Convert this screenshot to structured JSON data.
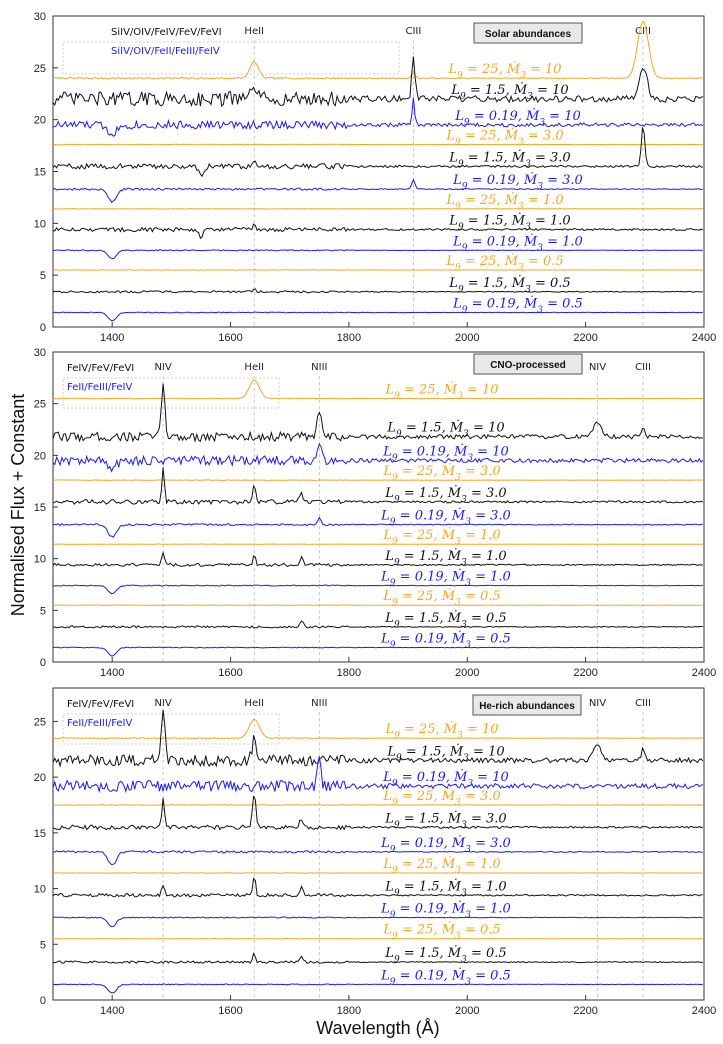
{
  "chart_data": [
    {
      "type": "line",
      "title": "Solar abundances",
      "xlabel": "Wavelength (Å)",
      "ylabel": "Normalised Flux + Constant",
      "xlim": [
        1300,
        2400
      ],
      "ylim": [
        0,
        30
      ],
      "xticks": [
        "1400",
        "1600",
        "1800",
        "2000",
        "2200",
        "2400"
      ],
      "yticks": [
        "0",
        "5",
        "10",
        "15",
        "20",
        "25",
        "30"
      ],
      "legend": {
        "line1": "SiIV/OIV/FeIV/FeV/FeVI",
        "line2": "SiIV/OIV/FeII/FeIII/FeIV"
      },
      "line_ids": [
        {
          "label": "HeII",
          "x": 1640
        },
        {
          "label": "CIII",
          "x": 1909
        },
        {
          "label": "CIII",
          "x": 2297
        }
      ],
      "series": [
        {
          "name": "L9 = 25, Ṁ3 = 10",
          "L9": "25",
          "Mdot3": "10",
          "offset": 24.0,
          "color": "orange",
          "noise": 0.08,
          "features": [
            [
              1640,
              1.6,
              10
            ],
            [
              1909,
              0.5,
              4
            ],
            [
              2297,
              5.5,
              13
            ]
          ]
        },
        {
          "name": "L9 = 1.5, Ṁ3 = 10",
          "L9": "1.5",
          "Mdot3": "10",
          "offset": 22.0,
          "color": "black",
          "noise": 0.7,
          "features": [
            [
              1640,
              1.3,
              6
            ],
            [
              1909,
              4.0,
              4
            ],
            [
              2297,
              3.0,
              10
            ]
          ]
        },
        {
          "name": "L9 = 0.19, Ṁ3 = 10",
          "L9": "0.19",
          "Mdot3": "10",
          "offset": 19.5,
          "color": "blue",
          "noise": 0.4,
          "features": [
            [
              1909,
              2.5,
              3
            ],
            [
              1400,
              -0.8,
              12
            ]
          ]
        },
        {
          "name": "L9 = 25, Ṁ3 = 3.0",
          "L9": "25",
          "Mdot3": "3.0",
          "offset": 17.6,
          "color": "orange",
          "noise": 0.03,
          "features": []
        },
        {
          "name": "L9 = 1.5, Ṁ3 = 3.0",
          "L9": "1.5",
          "Mdot3": "3.0",
          "offset": 15.5,
          "color": "black",
          "noise": 0.25,
          "features": [
            [
              1640,
              0.7,
              4
            ],
            [
              1550,
              -0.8,
              6
            ],
            [
              2297,
              4.0,
              4
            ]
          ]
        },
        {
          "name": "L9 = 0.19, Ṁ3 = 3.0",
          "L9": "0.19",
          "Mdot3": "3.0",
          "offset": 13.3,
          "color": "blue",
          "noise": 0.1,
          "features": [
            [
              1400,
              -1.2,
              10
            ],
            [
              1909,
              0.9,
              4
            ]
          ]
        },
        {
          "name": "L9 = 25, Ṁ3 = 1.0",
          "L9": "25",
          "Mdot3": "1.0",
          "offset": 11.4,
          "color": "orange",
          "noise": 0.02,
          "features": []
        },
        {
          "name": "L9 = 1.5, Ṁ3 = 1.0",
          "L9": "1.5",
          "Mdot3": "1.0",
          "offset": 9.4,
          "color": "black",
          "noise": 0.2,
          "features": [
            [
              1550,
              -0.7,
              5
            ],
            [
              1640,
              0.5,
              3
            ]
          ]
        },
        {
          "name": "L9 = 0.19, Ṁ3 = 1.0",
          "L9": "0.19",
          "Mdot3": "1.0",
          "offset": 7.4,
          "color": "blue",
          "noise": 0.05,
          "features": [
            [
              1400,
              -0.8,
              10
            ]
          ]
        },
        {
          "name": "L9 = 25, Ṁ3 = 0.5",
          "L9": "25",
          "Mdot3": "0.5",
          "offset": 5.5,
          "color": "orange",
          "noise": 0.02,
          "features": []
        },
        {
          "name": "L9 = 1.5, Ṁ3 = 0.5",
          "L9": "1.5",
          "Mdot3": "0.5",
          "offset": 3.4,
          "color": "black",
          "noise": 0.1,
          "features": [
            [
              1640,
              0.3,
              3
            ]
          ]
        },
        {
          "name": "L9 = 0.19, Ṁ3 = 0.5",
          "L9": "0.19",
          "Mdot3": "0.5",
          "offset": 1.4,
          "color": "blue",
          "noise": 0.04,
          "features": [
            [
              1400,
              -0.8,
              10
            ]
          ]
        }
      ]
    },
    {
      "type": "line",
      "title": "CNO-processed",
      "xlabel": "Wavelength (Å)",
      "ylabel": "Normalised Flux + Constant",
      "xlim": [
        1300,
        2400
      ],
      "ylim": [
        0,
        30
      ],
      "xticks": [
        "1400",
        "1600",
        "1800",
        "2000",
        "2200",
        "2400"
      ],
      "yticks": [
        "0",
        "5",
        "10",
        "15",
        "20",
        "25",
        "30"
      ],
      "legend": {
        "line1": "FeIV/FeV/FeVI",
        "line2": "FeII/FeIII/FeIV"
      },
      "line_ids": [
        {
          "label": "NIV",
          "x": 1486
        },
        {
          "label": "HeII",
          "x": 1640
        },
        {
          "label": "NIII",
          "x": 1750
        },
        {
          "label": "NIV",
          "x": 2220
        },
        {
          "label": "CIII",
          "x": 2297
        }
      ],
      "series": [
        {
          "name": "L9 = 25, Ṁ3 = 10",
          "L9": "25",
          "Mdot3": "10",
          "offset": 25.5,
          "color": "orange",
          "noise": 0.04,
          "features": [
            [
              1640,
              1.8,
              12
            ]
          ]
        },
        {
          "name": "L9 = 1.5, Ṁ3 = 10",
          "L9": "1.5",
          "Mdot3": "10",
          "offset": 21.8,
          "color": "black",
          "noise": 0.45,
          "features": [
            [
              1486,
              5.5,
              4
            ],
            [
              1750,
              2.2,
              5
            ],
            [
              2220,
              1.3,
              10
            ],
            [
              2297,
              1.0,
              4
            ]
          ]
        },
        {
          "name": "L9 = 0.19, Ṁ3 = 10",
          "L9": "0.19",
          "Mdot3": "10",
          "offset": 19.5,
          "color": "blue",
          "noise": 0.45,
          "features": [
            [
              1750,
              1.4,
              5
            ],
            [
              1400,
              -0.8,
              10
            ]
          ]
        },
        {
          "name": "L9 = 25, Ṁ3 = 3.0",
          "L9": "25",
          "Mdot3": "3.0",
          "offset": 17.6,
          "color": "orange",
          "noise": 0.03,
          "features": []
        },
        {
          "name": "L9 = 1.5, Ṁ3 = 3.0",
          "L9": "1.5",
          "Mdot3": "3.0",
          "offset": 15.5,
          "color": "black",
          "noise": 0.22,
          "features": [
            [
              1486,
              3.5,
              3
            ],
            [
              1640,
              1.5,
              4
            ],
            [
              1720,
              0.8,
              4
            ]
          ]
        },
        {
          "name": "L9 = 0.19, Ṁ3 = 3.0",
          "L9": "0.19",
          "Mdot3": "3.0",
          "offset": 13.3,
          "color": "blue",
          "noise": 0.1,
          "features": [
            [
              1400,
              -1.2,
              10
            ],
            [
              1750,
              0.6,
              4
            ]
          ]
        },
        {
          "name": "L9 = 25, Ṁ3 = 1.0",
          "L9": "25",
          "Mdot3": "1.0",
          "offset": 11.4,
          "color": "orange",
          "noise": 0.02,
          "features": []
        },
        {
          "name": "L9 = 1.5, Ṁ3 = 1.0",
          "L9": "1.5",
          "Mdot3": "1.0",
          "offset": 9.4,
          "color": "black",
          "noise": 0.15,
          "features": [
            [
              1486,
              1.3,
              3
            ],
            [
              1640,
              1.0,
              3
            ],
            [
              1720,
              0.8,
              4
            ]
          ]
        },
        {
          "name": "L9 = 0.19, Ṁ3 = 1.0",
          "L9": "0.19",
          "Mdot3": "1.0",
          "offset": 7.4,
          "color": "blue",
          "noise": 0.05,
          "features": [
            [
              1400,
              -0.8,
              10
            ]
          ]
        },
        {
          "name": "L9 = 25, Ṁ3 = 0.5",
          "L9": "25",
          "Mdot3": "0.5",
          "offset": 5.5,
          "color": "orange",
          "noise": 0.02,
          "features": []
        },
        {
          "name": "L9 = 1.5, Ṁ3 = 0.5",
          "L9": "1.5",
          "Mdot3": "0.5",
          "offset": 3.4,
          "color": "black",
          "noise": 0.1,
          "features": [
            [
              1720,
              0.6,
              4
            ]
          ]
        },
        {
          "name": "L9 = 0.19, Ṁ3 = 0.5",
          "L9": "0.19",
          "Mdot3": "0.5",
          "offset": 1.4,
          "color": "blue",
          "noise": 0.04,
          "features": [
            [
              1400,
              -0.8,
              10
            ]
          ]
        }
      ]
    },
    {
      "type": "line",
      "title": "He-rich abundances",
      "xlabel": "Wavelength (Å)",
      "ylabel": "Normalised Flux + Constant",
      "xlim": [
        1300,
        2400
      ],
      "ylim": [
        0,
        28
      ],
      "xticks": [
        "1400",
        "1600",
        "1800",
        "2000",
        "2200",
        "2400"
      ],
      "yticks": [
        "0",
        "5",
        "10",
        "15",
        "20",
        "25"
      ],
      "legend": {
        "line1": "FeIV/FeV/FeVI",
        "line2": "FeII/FeIII/FeIV"
      },
      "line_ids": [
        {
          "label": "NIV",
          "x": 1486
        },
        {
          "label": "HeII",
          "x": 1640
        },
        {
          "label": "NIII",
          "x": 1750
        },
        {
          "label": "NIV",
          "x": 2220
        },
        {
          "label": "CIII",
          "x": 2297
        }
      ],
      "series": [
        {
          "name": "L9 = 25, Ṁ3 = 10",
          "L9": "25",
          "Mdot3": "10",
          "offset": 23.5,
          "color": "orange",
          "noise": 0.04,
          "features": [
            [
              1640,
              1.7,
              12
            ]
          ]
        },
        {
          "name": "L9 = 1.5, Ṁ3 = 10",
          "L9": "1.5",
          "Mdot3": "10",
          "offset": 21.5,
          "color": "black",
          "noise": 0.5,
          "features": [
            [
              1486,
              5.0,
              4
            ],
            [
              1640,
              2.0,
              5
            ],
            [
              2220,
              1.3,
              10
            ],
            [
              2297,
              1.0,
              4
            ]
          ]
        },
        {
          "name": "L9 = 0.19, Ṁ3 = 10",
          "L9": "0.19",
          "Mdot3": "10",
          "offset": 19.2,
          "color": "blue",
          "noise": 0.5,
          "features": [
            [
              1750,
              2.5,
              4
            ]
          ]
        },
        {
          "name": "L9 = 25, Ṁ3 = 3.0",
          "L9": "25",
          "Mdot3": "3.0",
          "offset": 17.5,
          "color": "orange",
          "noise": 0.03,
          "features": []
        },
        {
          "name": "L9 = 1.5, Ṁ3 = 3.0",
          "L9": "1.5",
          "Mdot3": "3.0",
          "offset": 15.5,
          "color": "black",
          "noise": 0.2,
          "features": [
            [
              1486,
              2.8,
              3
            ],
            [
              1640,
              3.0,
              4
            ],
            [
              1720,
              0.8,
              4
            ]
          ]
        },
        {
          "name": "L9 = 0.19, Ṁ3 = 3.0",
          "L9": "0.19",
          "Mdot3": "3.0",
          "offset": 13.3,
          "color": "blue",
          "noise": 0.1,
          "features": [
            [
              1400,
              -1.2,
              10
            ]
          ]
        },
        {
          "name": "L9 = 25, Ṁ3 = 1.0",
          "L9": "25",
          "Mdot3": "1.0",
          "offset": 11.4,
          "color": "orange",
          "noise": 0.02,
          "features": []
        },
        {
          "name": "L9 = 1.5, Ṁ3 = 1.0",
          "L9": "1.5",
          "Mdot3": "1.0",
          "offset": 9.4,
          "color": "black",
          "noise": 0.15,
          "features": [
            [
              1486,
              1.0,
              3
            ],
            [
              1640,
              1.8,
              3
            ],
            [
              1720,
              0.7,
              4
            ]
          ]
        },
        {
          "name": "L9 = 0.19, Ṁ3 = 1.0",
          "L9": "0.19",
          "Mdot3": "1.0",
          "offset": 7.4,
          "color": "blue",
          "noise": 0.05,
          "features": [
            [
              1400,
              -0.8,
              10
            ]
          ]
        },
        {
          "name": "L9 = 25, Ṁ3 = 0.5",
          "L9": "25",
          "Mdot3": "0.5",
          "offset": 5.5,
          "color": "orange",
          "noise": 0.02,
          "features": []
        },
        {
          "name": "L9 = 1.5, Ṁ3 = 0.5",
          "L9": "1.5",
          "Mdot3": "0.5",
          "offset": 3.4,
          "color": "black",
          "noise": 0.1,
          "features": [
            [
              1640,
              0.8,
              3
            ],
            [
              1720,
              0.5,
              4
            ]
          ]
        },
        {
          "name": "L9 = 0.19, Ṁ3 = 0.5",
          "L9": "0.19",
          "Mdot3": "0.5",
          "offset": 1.4,
          "color": "blue",
          "noise": 0.04,
          "features": [
            [
              1400,
              -0.8,
              10
            ]
          ]
        }
      ]
    }
  ],
  "colors": {
    "orange": "#f5a623",
    "black": "#111111",
    "blue": "#1a1aff",
    "dashed": "#b8b8b8",
    "box": "#e9e9e9"
  },
  "labels": {
    "ylabel": "Normalised Flux + Constant",
    "xlabel": "Wavelength (Å)"
  }
}
